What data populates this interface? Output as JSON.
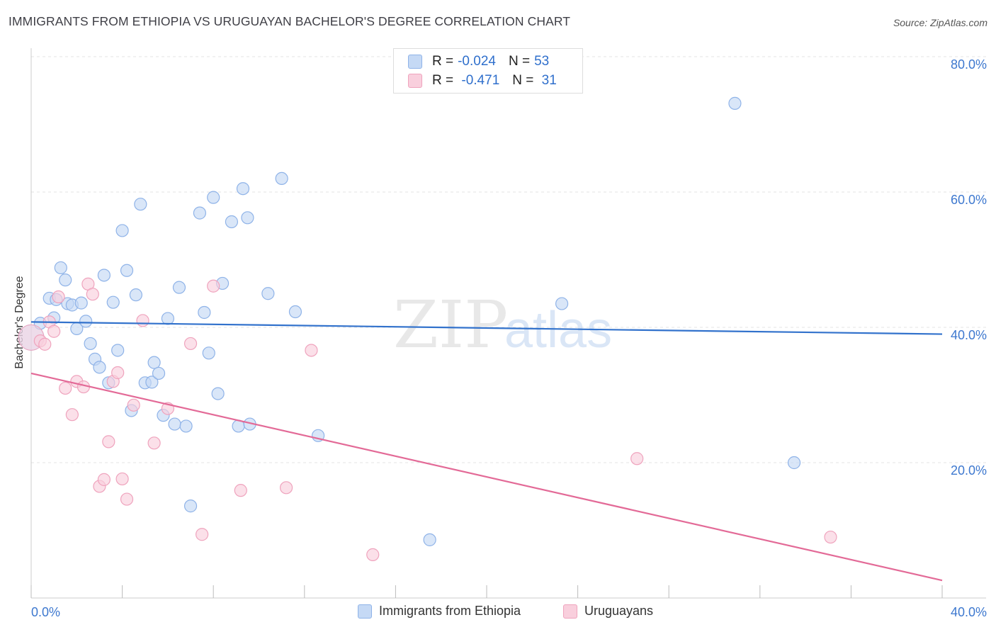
{
  "title": "IMMIGRANTS FROM ETHIOPIA VS URUGUAYAN BACHELOR'S DEGREE CORRELATION CHART",
  "source": "Source: ZipAtlas.com",
  "watermark": {
    "zip": "ZIP",
    "atlas": "atlas"
  },
  "legend": {
    "rows": [
      {
        "r_label": "R = ",
        "r_value": "-0.024",
        "n_label": "N = ",
        "n_value": "53"
      },
      {
        "r_label": "R = ",
        "r_value": " -0.471",
        "n_label": "N = ",
        "n_value": " 31"
      }
    ]
  },
  "colors": {
    "blue_fill": "#c5d9f5",
    "blue_stroke": "#8fb3e8",
    "blue_line": "#3272cc",
    "pink_fill": "#f9cfdd",
    "pink_stroke": "#efa3bd",
    "pink_line": "#e36a97",
    "axis_text": "#3d78cf",
    "grid": "#e3e3e3"
  },
  "chart_data": {
    "type": "scatter",
    "title": "IMMIGRANTS FROM ETHIOPIA VS URUGUAYAN BACHELOR'S DEGREE CORRELATION CHART",
    "xlabel": "",
    "ylabel": "Bachelor's Degree",
    "xlim": [
      0,
      40
    ],
    "ylim": [
      0,
      80
    ],
    "x_tick_labels": [
      "0.0%",
      "40.0%"
    ],
    "y_ticks": [
      20,
      40,
      60,
      80
    ],
    "y_tick_labels": [
      "20.0%",
      "40.0%",
      "60.0%",
      "80.0%"
    ],
    "grid": true,
    "series": [
      {
        "name": "Immigrants from Ethiopia",
        "color": "blue",
        "r": -0.024,
        "n": 53,
        "trend": {
          "x": [
            0,
            40
          ],
          "y": [
            40.8,
            39.0
          ]
        },
        "points": [
          [
            0.4,
            40.6
          ],
          [
            0.8,
            44.3
          ],
          [
            1.0,
            41.4
          ],
          [
            1.1,
            44.1
          ],
          [
            1.3,
            48.8
          ],
          [
            1.5,
            47.0
          ],
          [
            1.6,
            43.5
          ],
          [
            1.8,
            43.3
          ],
          [
            2.0,
            39.8
          ],
          [
            2.2,
            43.6
          ],
          [
            2.4,
            40.9
          ],
          [
            2.6,
            37.6
          ],
          [
            2.8,
            35.3
          ],
          [
            3.0,
            34.1
          ],
          [
            3.2,
            47.7
          ],
          [
            3.4,
            31.8
          ],
          [
            3.6,
            43.7
          ],
          [
            3.8,
            36.6
          ],
          [
            4.0,
            54.3
          ],
          [
            4.2,
            48.4
          ],
          [
            4.4,
            27.7
          ],
          [
            4.6,
            44.8
          ],
          [
            4.8,
            58.2
          ],
          [
            5.0,
            31.8
          ],
          [
            5.3,
            31.9
          ],
          [
            5.4,
            34.8
          ],
          [
            5.6,
            33.2
          ],
          [
            5.8,
            27.0
          ],
          [
            6.0,
            41.3
          ],
          [
            6.3,
            25.7
          ],
          [
            6.5,
            45.9
          ],
          [
            6.8,
            25.4
          ],
          [
            7.0,
            13.6
          ],
          [
            7.4,
            56.9
          ],
          [
            7.6,
            42.2
          ],
          [
            7.8,
            36.2
          ],
          [
            8.0,
            59.2
          ],
          [
            8.2,
            30.2
          ],
          [
            8.4,
            46.5
          ],
          [
            8.8,
            55.6
          ],
          [
            9.1,
            25.4
          ],
          [
            9.3,
            60.5
          ],
          [
            9.5,
            56.2
          ],
          [
            9.6,
            25.7
          ],
          [
            10.4,
            45.0
          ],
          [
            11.0,
            62.0
          ],
          [
            11.6,
            42.3
          ],
          [
            12.6,
            24.0
          ],
          [
            17.5,
            8.6
          ],
          [
            23.3,
            43.5
          ],
          [
            30.9,
            73.1
          ],
          [
            33.5,
            20.0
          ]
        ],
        "large_points": [
          [
            0.0,
            38.5
          ]
        ]
      },
      {
        "name": "Uruguayans",
        "color": "pink",
        "r": -0.471,
        "n": 31,
        "trend": {
          "x": [
            0,
            40
          ],
          "y": [
            33.2,
            2.6
          ]
        },
        "points": [
          [
            0.4,
            38.0
          ],
          [
            0.6,
            37.5
          ],
          [
            0.8,
            40.8
          ],
          [
            1.0,
            39.4
          ],
          [
            1.2,
            44.5
          ],
          [
            1.5,
            31.0
          ],
          [
            1.8,
            27.1
          ],
          [
            2.0,
            32.0
          ],
          [
            2.3,
            31.2
          ],
          [
            2.5,
            46.4
          ],
          [
            2.7,
            44.9
          ],
          [
            3.0,
            16.5
          ],
          [
            3.2,
            17.5
          ],
          [
            3.4,
            23.1
          ],
          [
            3.6,
            32.0
          ],
          [
            3.8,
            33.3
          ],
          [
            4.0,
            17.6
          ],
          [
            4.2,
            14.6
          ],
          [
            4.5,
            28.5
          ],
          [
            4.9,
            41.0
          ],
          [
            5.4,
            22.9
          ],
          [
            6.0,
            28.0
          ],
          [
            7.0,
            37.6
          ],
          [
            7.5,
            9.4
          ],
          [
            8.0,
            46.1
          ],
          [
            9.2,
            15.9
          ],
          [
            11.2,
            16.3
          ],
          [
            12.3,
            36.6
          ],
          [
            15.0,
            6.4
          ],
          [
            26.6,
            20.6
          ],
          [
            35.1,
            9.0
          ]
        ],
        "large_points": [
          [
            0.0,
            38.5
          ]
        ]
      }
    ]
  },
  "bottom_legend": [
    {
      "label": "Immigrants from Ethiopia",
      "color": "blue"
    },
    {
      "label": "Uruguayans",
      "color": "pink"
    }
  ]
}
